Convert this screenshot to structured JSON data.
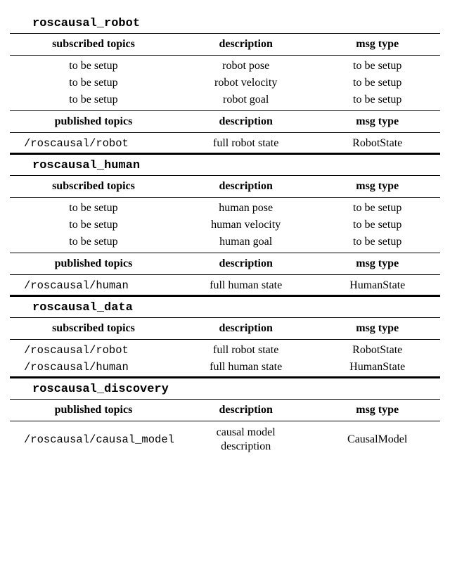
{
  "sections": [
    {
      "name": "roscausal_robot",
      "blocks": [
        {
          "headers": [
            "subscribed topics",
            "description",
            "msg type"
          ],
          "rows": [
            [
              "to be setup",
              "robot pose",
              "to be setup"
            ],
            [
              "to be setup",
              "robot velocity",
              "to be setup"
            ],
            [
              "to be setup",
              "robot goal",
              "to be setup"
            ]
          ],
          "col1_mono": false,
          "col1_align": "center"
        },
        {
          "headers": [
            "published topics",
            "description",
            "msg type"
          ],
          "rows": [
            [
              "/roscausal/robot",
              "full robot state",
              "RobotState"
            ]
          ],
          "col1_mono": true,
          "col1_align": "left"
        }
      ]
    },
    {
      "name": "roscausal_human",
      "blocks": [
        {
          "headers": [
            "subscribed topics",
            "description",
            "msg type"
          ],
          "rows": [
            [
              "to be setup",
              "human pose",
              "to be setup"
            ],
            [
              "to be setup",
              "human velocity",
              "to be setup"
            ],
            [
              "to be setup",
              "human goal",
              "to be setup"
            ]
          ],
          "col1_mono": false,
          "col1_align": "center"
        },
        {
          "headers": [
            "published topics",
            "description",
            "msg type"
          ],
          "rows": [
            [
              "/roscausal/human",
              "full human state",
              "HumanState"
            ]
          ],
          "col1_mono": true,
          "col1_align": "left"
        }
      ]
    },
    {
      "name": "roscausal_data",
      "blocks": [
        {
          "headers": [
            "subscribed topics",
            "description",
            "msg type"
          ],
          "rows": [
            [
              "/roscausal/robot",
              "full robot state",
              "RobotState"
            ],
            [
              "/roscausal/human",
              "full human state",
              "HumanState"
            ]
          ],
          "col1_mono": true,
          "col1_align": "left"
        }
      ]
    },
    {
      "name": "roscausal_discovery",
      "blocks": [
        {
          "headers": [
            "published topics",
            "description",
            "msg type"
          ],
          "rows": [
            [
              "/roscausal/causal_model",
              "causal model\ndescription",
              "CausalModel"
            ]
          ],
          "col1_mono": true,
          "col1_align": "left"
        }
      ]
    }
  ]
}
